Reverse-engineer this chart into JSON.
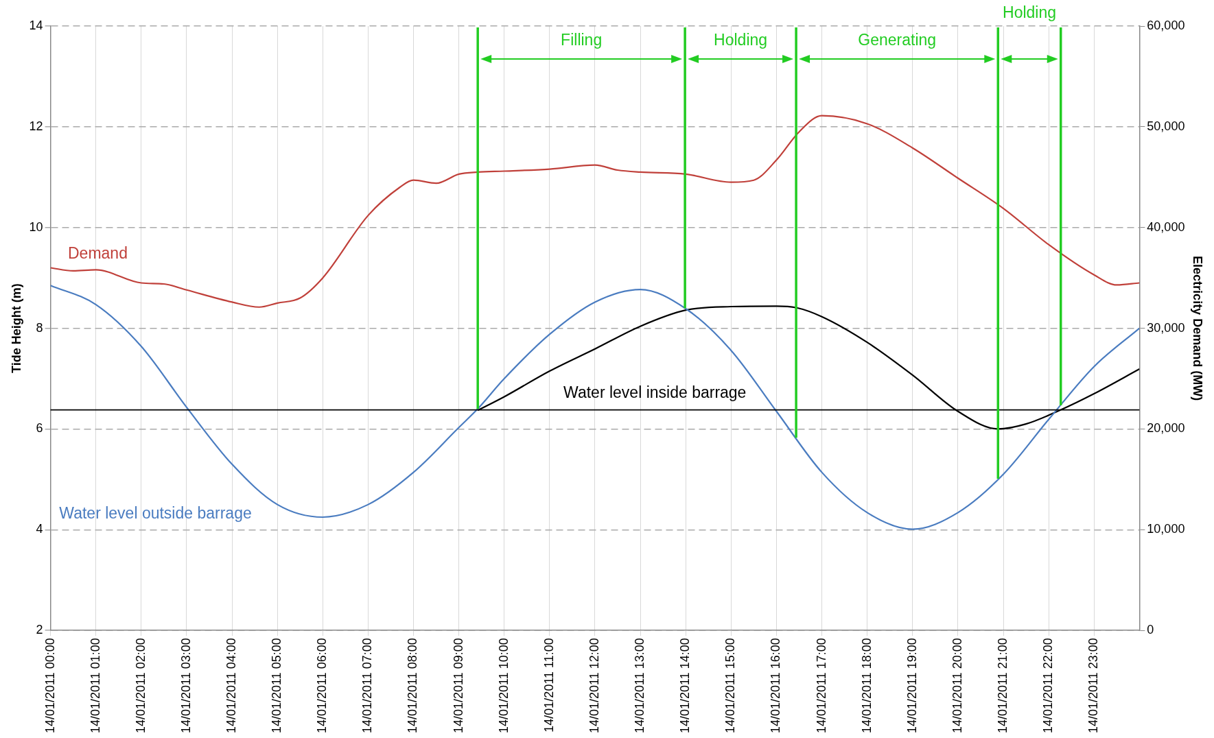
{
  "chart_data": {
    "type": "line",
    "ylabel": "Tide Height (m)",
    "y2label": "Electricity Demand (MW)",
    "xlim": [
      "2011-01-14T00:00",
      "2011-01-15T00:00"
    ],
    "xticks": [
      {
        "value": "2011-01-14T00:00",
        "label": "14/01/2011 00:00"
      },
      {
        "value": "2011-01-14T01:00",
        "label": "14/01/2011 01:00"
      },
      {
        "value": "2011-01-14T02:00",
        "label": "14/01/2011 02:00"
      },
      {
        "value": "2011-01-14T03:00",
        "label": "14/01/2011 03:00"
      },
      {
        "value": "2011-01-14T04:00",
        "label": "14/01/2011 04:00"
      },
      {
        "value": "2011-01-14T05:00",
        "label": "14/01/2011 05:00"
      },
      {
        "value": "2011-01-14T06:00",
        "label": "14/01/2011 06:00"
      },
      {
        "value": "2011-01-14T07:00",
        "label": "14/01/2011 07:00"
      },
      {
        "value": "2011-01-14T08:00",
        "label": "14/01/2011 08:00"
      },
      {
        "value": "2011-01-14T09:00",
        "label": "14/01/2011 09:00"
      },
      {
        "value": "2011-01-14T10:00",
        "label": "14/01/2011 10:00"
      },
      {
        "value": "2011-01-14T11:00",
        "label": "14/01/2011 11:00"
      },
      {
        "value": "2011-01-14T12:00",
        "label": "14/01/2011 12:00"
      },
      {
        "value": "2011-01-14T13:00",
        "label": "14/01/2011 13:00"
      },
      {
        "value": "2011-01-14T14:00",
        "label": "14/01/2011 14:00"
      },
      {
        "value": "2011-01-14T15:00",
        "label": "14/01/2011 15:00"
      },
      {
        "value": "2011-01-14T16:00",
        "label": "14/01/2011 16:00"
      },
      {
        "value": "2011-01-14T17:00",
        "label": "14/01/2011 17:00"
      },
      {
        "value": "2011-01-14T18:00",
        "label": "14/01/2011 18:00"
      },
      {
        "value": "2011-01-14T19:00",
        "label": "14/01/2011 19:00"
      },
      {
        "value": "2011-01-14T20:00",
        "label": "14/01/2011 20:00"
      },
      {
        "value": "2011-01-14T21:00",
        "label": "14/01/2011 21:00"
      },
      {
        "value": "2011-01-14T22:00",
        "label": "14/01/2011 22:00"
      },
      {
        "value": "2011-01-14T23:00",
        "label": "14/01/2011 23:00"
      }
    ],
    "ylim": [
      2,
      14
    ],
    "yticks": [
      2,
      4,
      6,
      8,
      10,
      12,
      14
    ],
    "y2lim": [
      0,
      60000
    ],
    "y2ticks": [
      {
        "value": 0,
        "label": "0"
      },
      {
        "value": 10000,
        "label": "10,000"
      },
      {
        "value": 20000,
        "label": "20,000"
      },
      {
        "value": 30000,
        "label": "30,000"
      },
      {
        "value": 40000,
        "label": "40,000"
      },
      {
        "value": 50000,
        "label": "50,000"
      },
      {
        "value": 60000,
        "label": "60,000"
      }
    ],
    "grid": true,
    "legend": false,
    "series": [
      {
        "name": "Water level outside barrage",
        "color": "#4a7cc0",
        "x": [
          "2011-01-14T00:00",
          "2011-01-14T01:00",
          "2011-01-14T02:00",
          "2011-01-14T03:00",
          "2011-01-14T04:00",
          "2011-01-14T05:00",
          "2011-01-14T06:00",
          "2011-01-14T07:00",
          "2011-01-14T08:00",
          "2011-01-14T09:00",
          "2011-01-14T09:25",
          "2011-01-14T10:00",
          "2011-01-14T11:00",
          "2011-01-14T12:00",
          "2011-01-14T13:00",
          "2011-01-14T14:00",
          "2011-01-14T15:00",
          "2011-01-14T16:00",
          "2011-01-14T17:00",
          "2011-01-14T18:00",
          "2011-01-14T19:00",
          "2011-01-14T20:00",
          "2011-01-14T21:00",
          "2011-01-14T22:00",
          "2011-01-14T23:00",
          "2011-01-15T00:00"
        ],
        "values": [
          8.85,
          8.47,
          7.64,
          6.43,
          5.3,
          4.5,
          4.25,
          4.5,
          5.14,
          6.03,
          6.4,
          7.0,
          7.88,
          8.52,
          8.77,
          8.39,
          7.56,
          6.35,
          5.14,
          4.34,
          4.01,
          4.34,
          5.1,
          6.19,
          7.24,
          8.0
        ]
      },
      {
        "name": "Water level inside barrage",
        "color": "#000000",
        "x": [
          "2011-01-14T09:25",
          "2011-01-14T10:00",
          "2011-01-14T11:00",
          "2011-01-14T12:00",
          "2011-01-14T13:00",
          "2011-01-14T14:00",
          "2011-01-14T15:00",
          "2011-01-14T16:00",
          "2011-01-14T16:26",
          "2011-01-14T17:00",
          "2011-01-14T18:00",
          "2011-01-14T19:00",
          "2011-01-14T20:00",
          "2011-01-14T20:53",
          "2011-01-14T21:30",
          "2011-01-14T22:16",
          "2011-01-14T23:00",
          "2011-01-15T00:00"
        ],
        "values": [
          6.37,
          6.64,
          7.15,
          7.59,
          8.04,
          8.36,
          8.43,
          8.44,
          8.41,
          8.23,
          7.72,
          7.07,
          6.35,
          6.0,
          6.1,
          6.38,
          6.7,
          7.19
        ]
      },
      {
        "name": "Demand",
        "color": "#c0403a",
        "axis": "y2",
        "x": [
          "2011-01-14T00:00",
          "2011-01-14T00:30",
          "2011-01-14T01:00",
          "2011-01-14T02:00",
          "2011-01-14T02:30",
          "2011-01-14T03:00",
          "2011-01-14T04:00",
          "2011-01-14T04:36",
          "2011-01-14T05:00",
          "2011-01-14T05:30",
          "2011-01-14T06:00",
          "2011-01-14T07:00",
          "2011-01-14T07:42",
          "2011-01-14T08:00",
          "2011-01-14T08:30",
          "2011-01-14T09:00",
          "2011-01-14T09:25",
          "2011-01-14T10:00",
          "2011-01-14T11:00",
          "2011-01-14T12:00",
          "2011-01-14T12:30",
          "2011-01-14T13:00",
          "2011-01-14T14:00",
          "2011-01-14T15:00",
          "2011-01-14T15:30",
          "2011-01-14T16:00",
          "2011-01-14T16:30",
          "2011-01-14T17:00",
          "2011-01-14T18:00",
          "2011-01-14T19:00",
          "2011-01-14T20:00",
          "2011-01-14T21:00",
          "2011-01-14T22:00",
          "2011-01-14T23:00",
          "2011-01-14T23:30",
          "2011-01-15T00:00"
        ],
        "values": [
          36000,
          35700,
          35800,
          34500,
          34400,
          33800,
          32600,
          32100,
          32500,
          33000,
          35000,
          41200,
          44000,
          44700,
          44400,
          45300,
          45500,
          45600,
          45800,
          46200,
          45700,
          45500,
          45300,
          44500,
          44700,
          46700,
          49500,
          51100,
          50300,
          47900,
          44900,
          41900,
          38300,
          35300,
          34300,
          34500
        ]
      }
    ],
    "ref_lines": [
      {
        "axis": "y",
        "value": 6.38,
        "color": "#000000"
      },
      {
        "axis": "x",
        "value": "2011-01-14T09:25",
        "color": "#22cc22"
      },
      {
        "axis": "x",
        "value": "2011-01-14T13:59",
        "color": "#22cc22"
      },
      {
        "axis": "x",
        "value": "2011-01-14T16:26",
        "color": "#22cc22"
      },
      {
        "axis": "x",
        "value": "2011-01-14T20:53",
        "color": "#22cc22"
      },
      {
        "axis": "x",
        "value": "2011-01-14T22:16",
        "color": "#22cc22"
      }
    ],
    "annotations": [
      "Filling",
      "Holding",
      "Generating",
      "Holding"
    ]
  }
}
